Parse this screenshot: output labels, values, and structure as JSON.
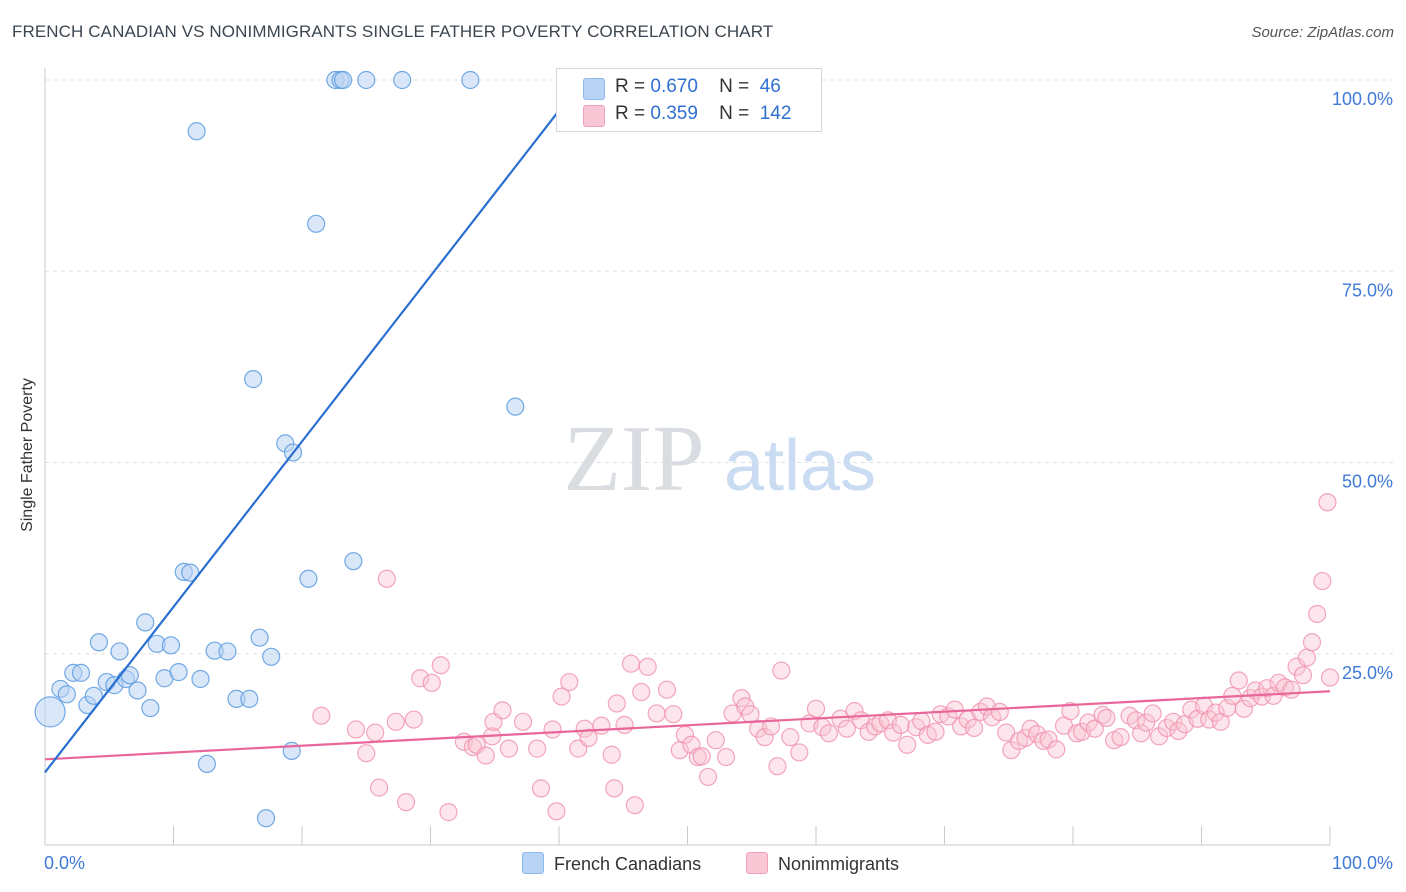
{
  "title": "FRENCH CANADIAN VS NONIMMIGRANTS SINGLE FATHER POVERTY CORRELATION CHART",
  "source": "Source: ZipAtlas.com",
  "watermark": {
    "zip": "ZIP",
    "atlas": "atlas"
  },
  "legend": {
    "r_label": "R =",
    "n_label": "N =",
    "rows": [
      {
        "name": "French Canadians",
        "r": "0.670",
        "n": "46",
        "color": "#8fb8ec",
        "fill": "#b9d3f4"
      },
      {
        "name": "Nonimmigrants",
        "r": "0.359",
        "n": "142",
        "color": "#f0a1b9",
        "fill": "#f8c6d5"
      }
    ]
  },
  "chart_data": {
    "type": "scatter",
    "title": "FRENCH CANADIAN VS NONIMMIGRANTS SINGLE FATHER POVERTY CORRELATION CHART",
    "xlabel": "",
    "ylabel": "Single Father Poverty",
    "xlim": [
      0,
      100
    ],
    "ylim": [
      0,
      100
    ],
    "x_tick_labels": [
      "0.0%",
      "100.0%"
    ],
    "y_ticks": [
      25,
      50,
      75,
      100
    ],
    "y_tick_labels": [
      "25.0%",
      "50.0%",
      "75.0%",
      "100.0%"
    ],
    "grid": true,
    "series": [
      {
        "name": "French Canadians",
        "color": "#5b9be0",
        "line_color": "#2a6fd1",
        "trend": {
          "x": [
            0,
            40
          ],
          "y": [
            9.5,
            96
          ]
        },
        "points": [
          [
            0.4,
            17.4
          ],
          [
            1.2,
            20.4
          ],
          [
            1.7,
            19.7
          ],
          [
            2.2,
            22.5
          ],
          [
            2.8,
            22.5
          ],
          [
            3.3,
            18.3
          ],
          [
            3.8,
            19.5
          ],
          [
            4.2,
            26.5
          ],
          [
            4.8,
            21.3
          ],
          [
            5.4,
            20.9
          ],
          [
            5.8,
            25.3
          ],
          [
            6.3,
            21.7
          ],
          [
            6.6,
            22.2
          ],
          [
            7.2,
            20.2
          ],
          [
            7.8,
            29.1
          ],
          [
            8.2,
            17.9
          ],
          [
            8.7,
            26.3
          ],
          [
            9.3,
            21.8
          ],
          [
            9.8,
            26.1
          ],
          [
            10.4,
            22.6
          ],
          [
            10.8,
            35.7
          ],
          [
            11.3,
            35.6
          ],
          [
            11.8,
            93.3
          ],
          [
            12.1,
            21.7
          ],
          [
            12.6,
            10.6
          ],
          [
            13.2,
            25.4
          ],
          [
            14.2,
            25.3
          ],
          [
            14.9,
            19.1
          ],
          [
            15.9,
            19.1
          ],
          [
            16.2,
            60.9
          ],
          [
            16.7,
            27.1
          ],
          [
            17.2,
            3.5
          ],
          [
            17.6,
            24.6
          ],
          [
            18.7,
            52.5
          ],
          [
            19.2,
            12.3
          ],
          [
            19.3,
            51.3
          ],
          [
            20.5,
            34.8
          ],
          [
            21.1,
            81.2
          ],
          [
            22.6,
            100
          ],
          [
            23.0,
            100
          ],
          [
            23.2,
            100
          ],
          [
            24.0,
            37.1
          ],
          [
            25.0,
            100
          ],
          [
            27.8,
            100
          ],
          [
            33.1,
            100
          ],
          [
            36.6,
            57.3
          ]
        ]
      },
      {
        "name": "Nonimmigrants",
        "color": "#f090ad",
        "line_color": "#e8669a",
        "trend": {
          "x": [
            0,
            100
          ],
          "y": [
            11.2,
            20.1
          ]
        },
        "points": [
          [
            21.5,
            16.9
          ],
          [
            24.2,
            15.1
          ],
          [
            25.0,
            12.0
          ],
          [
            25.7,
            14.7
          ],
          [
            26.0,
            7.5
          ],
          [
            26.6,
            34.8
          ],
          [
            27.3,
            16.1
          ],
          [
            28.1,
            5.6
          ],
          [
            28.7,
            16.4
          ],
          [
            29.2,
            21.8
          ],
          [
            30.1,
            21.2
          ],
          [
            30.8,
            23.5
          ],
          [
            31.4,
            4.3
          ],
          [
            32.6,
            13.5
          ],
          [
            33.3,
            12.8
          ],
          [
            33.6,
            13.1
          ],
          [
            34.3,
            11.7
          ],
          [
            34.8,
            14.2
          ],
          [
            34.9,
            16.1
          ],
          [
            35.6,
            17.6
          ],
          [
            36.1,
            12.6
          ],
          [
            37.2,
            16.1
          ],
          [
            38.3,
            12.6
          ],
          [
            38.6,
            7.4
          ],
          [
            39.5,
            15.1
          ],
          [
            39.8,
            4.4
          ],
          [
            40.2,
            19.4
          ],
          [
            40.8,
            21.3
          ],
          [
            41.5,
            12.6
          ],
          [
            42.0,
            15.2
          ],
          [
            42.3,
            14.0
          ],
          [
            43.3,
            15.6
          ],
          [
            44.1,
            11.8
          ],
          [
            44.3,
            7.4
          ],
          [
            44.5,
            18.5
          ],
          [
            45.1,
            15.7
          ],
          [
            45.6,
            23.7
          ],
          [
            45.9,
            5.2
          ],
          [
            46.4,
            20.0
          ],
          [
            46.9,
            23.3
          ],
          [
            47.6,
            17.2
          ],
          [
            48.4,
            20.3
          ],
          [
            48.9,
            17.1
          ],
          [
            49.4,
            12.4
          ],
          [
            49.8,
            14.4
          ],
          [
            50.3,
            13.1
          ],
          [
            50.8,
            11.5
          ],
          [
            51.1,
            11.6
          ],
          [
            51.6,
            8.9
          ],
          [
            52.2,
            13.7
          ],
          [
            53.0,
            11.5
          ],
          [
            53.5,
            17.2
          ],
          [
            54.2,
            19.2
          ],
          [
            54.5,
            18.1
          ],
          [
            54.9,
            17.1
          ],
          [
            55.5,
            15.2
          ],
          [
            56.0,
            14.1
          ],
          [
            56.5,
            15.5
          ],
          [
            57.0,
            10.3
          ],
          [
            57.3,
            22.8
          ],
          [
            58.0,
            14.1
          ],
          [
            58.7,
            12.1
          ],
          [
            59.5,
            15.9
          ],
          [
            60.0,
            17.8
          ],
          [
            60.5,
            15.4
          ],
          [
            61.0,
            14.6
          ],
          [
            61.9,
            16.5
          ],
          [
            62.4,
            15.2
          ],
          [
            63.0,
            17.5
          ],
          [
            63.5,
            16.3
          ],
          [
            64.1,
            14.8
          ],
          [
            64.6,
            15.5
          ],
          [
            65.0,
            15.9
          ],
          [
            65.6,
            16.3
          ],
          [
            66.0,
            14.7
          ],
          [
            66.6,
            15.7
          ],
          [
            67.1,
            13.1
          ],
          [
            67.8,
            15.4
          ],
          [
            68.2,
            16.2
          ],
          [
            68.7,
            14.4
          ],
          [
            69.3,
            14.8
          ],
          [
            69.7,
            17.1
          ],
          [
            70.3,
            16.8
          ],
          [
            70.8,
            17.7
          ],
          [
            71.3,
            15.5
          ],
          [
            71.8,
            16.4
          ],
          [
            72.3,
            15.3
          ],
          [
            72.8,
            17.4
          ],
          [
            73.3,
            18.1
          ],
          [
            73.7,
            16.7
          ],
          [
            74.3,
            17.4
          ],
          [
            74.8,
            14.7
          ],
          [
            75.2,
            12.4
          ],
          [
            75.8,
            13.6
          ],
          [
            76.3,
            14.0
          ],
          [
            76.7,
            15.2
          ],
          [
            77.2,
            14.5
          ],
          [
            77.7,
            13.6
          ],
          [
            78.1,
            13.8
          ],
          [
            78.7,
            12.5
          ],
          [
            79.3,
            15.6
          ],
          [
            79.8,
            17.5
          ],
          [
            80.3,
            14.6
          ],
          [
            80.7,
            14.8
          ],
          [
            81.2,
            16.0
          ],
          [
            81.7,
            15.2
          ],
          [
            82.3,
            17.0
          ],
          [
            82.6,
            16.6
          ],
          [
            83.2,
            13.7
          ],
          [
            83.7,
            14.1
          ],
          [
            84.4,
            16.9
          ],
          [
            84.9,
            16.3
          ],
          [
            85.3,
            14.6
          ],
          [
            85.7,
            16.0
          ],
          [
            86.2,
            17.2
          ],
          [
            86.7,
            14.2
          ],
          [
            87.3,
            15.3
          ],
          [
            87.8,
            16.1
          ],
          [
            88.2,
            14.9
          ],
          [
            88.7,
            15.8
          ],
          [
            89.2,
            17.7
          ],
          [
            89.7,
            16.5
          ],
          [
            90.2,
            18.2
          ],
          [
            90.6,
            16.4
          ],
          [
            91.1,
            17.3
          ],
          [
            91.5,
            16.1
          ],
          [
            92.0,
            17.9
          ],
          [
            92.4,
            19.5
          ],
          [
            92.9,
            21.5
          ],
          [
            93.3,
            17.8
          ],
          [
            93.8,
            19.2
          ],
          [
            94.2,
            20.2
          ],
          [
            94.7,
            19.4
          ],
          [
            95.1,
            20.5
          ],
          [
            95.6,
            19.5
          ],
          [
            96.0,
            21.2
          ],
          [
            96.5,
            20.6
          ],
          [
            97.0,
            20.3
          ],
          [
            97.4,
            23.3
          ],
          [
            97.9,
            22.2
          ],
          [
            98.2,
            24.5
          ],
          [
            98.6,
            26.5
          ],
          [
            99.0,
            30.2
          ],
          [
            99.4,
            34.5
          ],
          [
            99.8,
            44.8
          ],
          [
            100.0,
            21.9
          ]
        ]
      }
    ]
  }
}
